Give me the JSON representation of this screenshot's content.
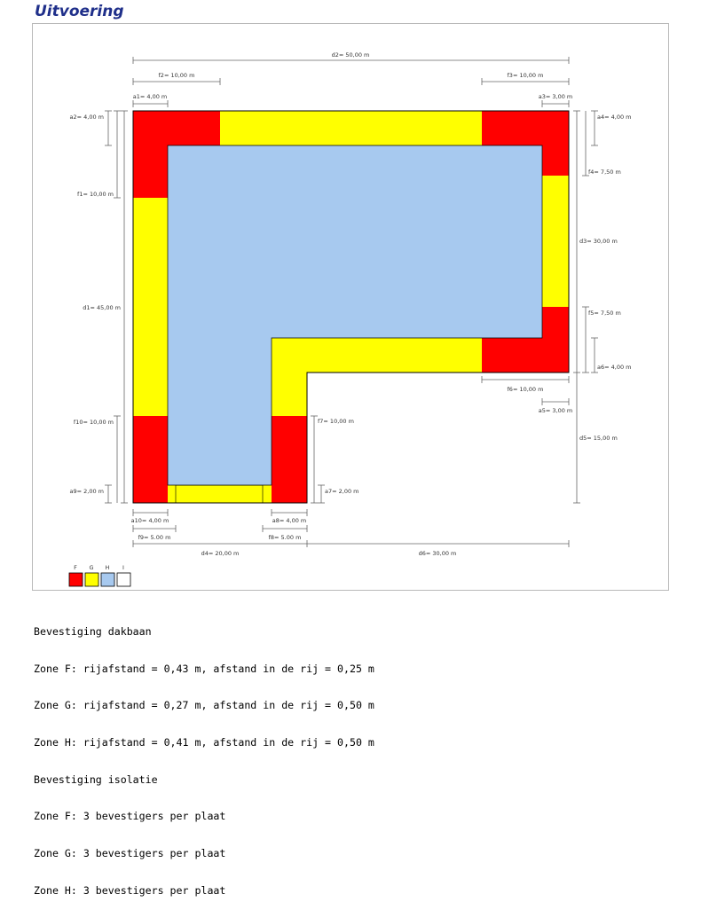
{
  "title": "Uitvoering",
  "colors": {
    "zone_F": "#ff0000",
    "zone_G": "#ffff00",
    "zone_H": "#a7c9ef",
    "zone_I": "#ffffff",
    "title": "#1f2f8a"
  },
  "dimensions": {
    "d1": "d1= 45,00 m",
    "d2": "d2= 50,00 m",
    "d3": "d3= 30,00 m",
    "d4": "d4= 20,00 m",
    "d5": "d5= 15,00 m",
    "d6": "d6= 30,00 m",
    "a1": "a1= 4,00 m",
    "a2": "a2= 4,00 m",
    "a3": "a3= 3,00 m",
    "a4": "a4= 4,00 m",
    "a5": "a5= 3,00 m",
    "a6": "a6= 4,00 m",
    "a7": "a7= 2,00 m",
    "a8": "a8= 4,00 m",
    "a9": "a9= 2,00 m",
    "a10": "a10= 4,00 m",
    "f1": "f1= 10,00 m",
    "f2": "f2= 10,00 m",
    "f3": "f3= 10,00 m",
    "f4": "f4= 7,50 m",
    "f5": "f5= 7,50 m",
    "f6": "f6= 10,00 m",
    "f7": "f7= 10,00 m",
    "f8": "f8= 5.00 m",
    "f9": "f9= 5.00 m",
    "f10": "f10= 10,00 m"
  },
  "legend": [
    {
      "label": "F",
      "color": "#ff0000"
    },
    {
      "label": "G",
      "color": "#ffff00"
    },
    {
      "label": "H",
      "color": "#a7c9ef"
    },
    {
      "label": "I",
      "color": "#ffffff"
    }
  ],
  "notes": [
    "Bevestiging dakbaan",
    "Zone F: rijafstand = 0,43 m, afstand in de rij = 0,25 m",
    "Zone G: rijafstand = 0,27 m, afstand in de rij = 0,50 m",
    "Zone H: rijafstand = 0,41 m, afstand in de rij = 0,50 m",
    "Bevestiging isolatie",
    "Zone F: 3 bevestigers per plaat",
    "Zone G: 3 bevestigers per plaat",
    "Zone H: 3 bevestigers per plaat"
  ]
}
